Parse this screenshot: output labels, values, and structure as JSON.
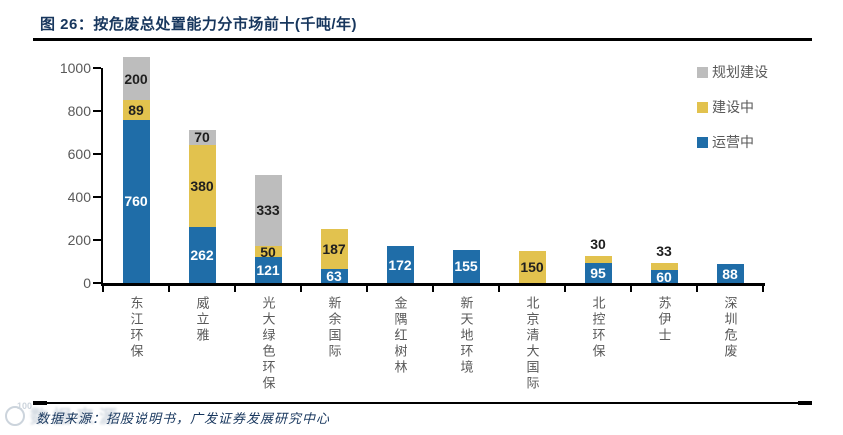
{
  "header": {
    "title": "图 26：按危废总处置能力分市场前十(千吨/年)"
  },
  "chart_data": {
    "type": "stacked-bar",
    "title": "按危废总处置能力分市场前十",
    "unit": "千吨/年",
    "categories": [
      "东江环保",
      "威立雅",
      "光大绿色环保",
      "新余国际",
      "金隅红树林",
      "新天地环境",
      "北京清大国际",
      "北控环保",
      "苏伊士",
      "深圳危废"
    ],
    "series": [
      {
        "name": "运营中",
        "color": "#1F6DA8",
        "label_color": "#FFFFFF",
        "values": [
          760,
          262,
          121,
          63,
          172,
          155,
          0,
          95,
          60,
          88
        ]
      },
      {
        "name": "建设中",
        "color": "#E2C24E",
        "label_color": "#1F1F1F",
        "values": [
          89,
          380,
          50,
          187,
          0,
          0,
          150,
          30,
          33,
          0
        ]
      },
      {
        "name": "规划建设",
        "color": "#BDBDBD",
        "label_color": "#1F1F1F",
        "values": [
          200,
          70,
          333,
          0,
          0,
          0,
          0,
          0,
          0,
          0
        ]
      }
    ],
    "totals": [
      1049,
      712,
      504,
      250,
      172,
      155,
      150,
      125,
      93,
      88
    ],
    "ylim": [
      0,
      1000
    ],
    "yticks": [
      0,
      200,
      400,
      600,
      800,
      1000
    ],
    "grid": false,
    "legend_position": "top-right",
    "legend_order_top_to_bottom": [
      "规划建设",
      "建设中",
      "运营中"
    ],
    "axis_color": "#000000",
    "tick_label_color": "#595959"
  },
  "footer": {
    "source": "数据来源：招股说明书，广发证券发展研究中心",
    "watermark_badge": "100",
    "watermark_ghost": "数据来源"
  }
}
